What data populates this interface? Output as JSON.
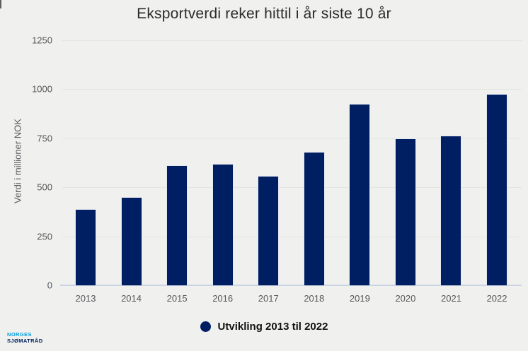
{
  "branding": {
    "line1": "NORGES",
    "line2": "SJØMATRÅD"
  },
  "colors": {
    "background": "#F0F1EE",
    "bar": "#001E62",
    "gridline": "#E3E5E0",
    "axis_line": "#C9D3E4",
    "tick_text": "#55565A",
    "title_text": "#2B2B2B",
    "legend_text": "#121212",
    "logo_blue": "#00A0DF",
    "logo_navy": "#00205B"
  },
  "chart_data": {
    "type": "bar",
    "title": "Eksportverdi reker hittil i år siste 10 år",
    "xlabel": "",
    "ylabel": "Verdi i millioner NOK",
    "categories": [
      "2013",
      "2014",
      "2015",
      "2016",
      "2017",
      "2018",
      "2019",
      "2020",
      "2021",
      "2022"
    ],
    "values": [
      390,
      450,
      612,
      618,
      560,
      680,
      925,
      750,
      765,
      975
    ],
    "ylim": [
      0,
      1250
    ],
    "y_ticks": [
      0,
      250,
      500,
      750,
      1000,
      1250
    ],
    "grid": "horizontal",
    "legend": {
      "label": "Utvikling 2013 til 2022",
      "position": "bottom",
      "marker": "circle-icon"
    }
  }
}
